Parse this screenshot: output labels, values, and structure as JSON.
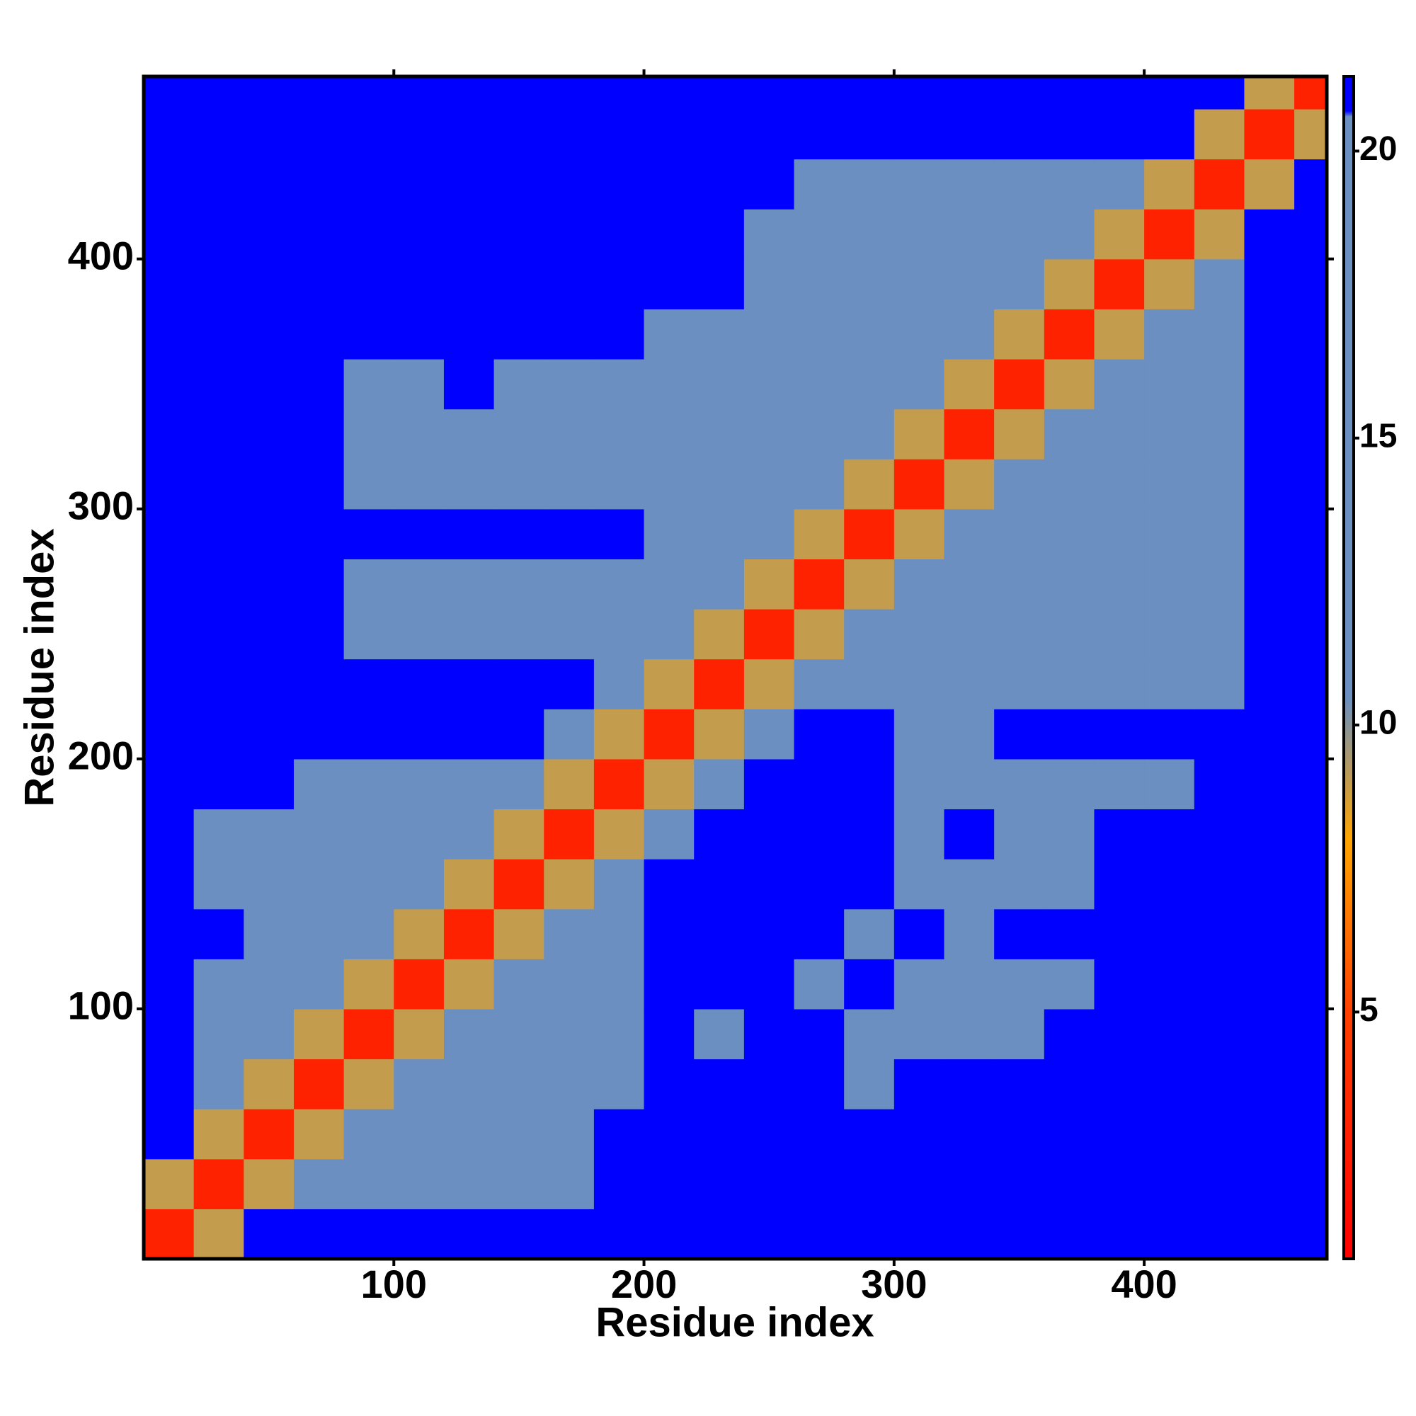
{
  "chart_data": {
    "type": "heatmap",
    "x_label": "Residue index",
    "y_label": "Residue index",
    "xlim": [
      0,
      473
    ],
    "ylim": [
      0,
      473
    ],
    "xticks": [
      100,
      200,
      300,
      400
    ],
    "yticks": [
      100,
      200,
      300,
      400
    ],
    "x_bins": [
      0,
      20,
      40,
      60,
      80,
      100,
      120,
      140,
      160,
      180,
      200,
      220,
      240,
      260,
      280,
      300,
      320,
      340,
      360,
      380,
      400,
      420,
      440,
      460,
      473
    ],
    "y_bins": [
      0,
      20,
      40,
      60,
      80,
      100,
      120,
      140,
      160,
      180,
      200,
      220,
      240,
      260,
      280,
      300,
      320,
      340,
      360,
      380,
      400,
      420,
      440,
      460,
      473
    ],
    "z": [
      [
        3,
        9,
        21,
        21,
        21,
        21,
        21,
        21,
        21,
        21,
        21,
        21,
        21,
        21,
        21,
        21,
        21,
        21,
        21,
        21,
        21,
        21,
        21,
        21
      ],
      [
        9,
        3,
        9,
        14,
        14,
        14,
        14,
        14,
        14,
        21,
        21,
        21,
        21,
        21,
        21,
        21,
        21,
        21,
        21,
        21,
        21,
        21,
        21,
        21
      ],
      [
        21,
        9,
        3,
        9,
        14,
        14,
        14,
        14,
        14,
        21,
        21,
        21,
        21,
        21,
        21,
        21,
        21,
        21,
        21,
        21,
        21,
        21,
        21,
        21
      ],
      [
        21,
        14,
        9,
        3,
        9,
        14,
        14,
        14,
        14,
        17,
        21,
        21,
        21,
        21,
        18,
        21,
        21,
        21,
        21,
        21,
        21,
        21,
        21,
        21
      ],
      [
        21,
        14,
        14,
        9,
        3,
        9,
        14,
        14,
        14,
        17,
        21,
        18,
        21,
        21,
        18,
        18,
        17,
        18,
        21,
        21,
        21,
        21,
        21,
        21
      ],
      [
        21,
        14,
        14,
        14,
        9,
        3,
        9,
        14,
        14,
        17,
        21,
        21,
        21,
        18,
        21,
        18,
        18,
        17,
        18,
        21,
        21,
        21,
        21,
        21
      ],
      [
        21,
        21,
        14,
        14,
        14,
        9,
        3,
        9,
        14,
        17,
        21,
        21,
        21,
        21,
        18,
        21,
        18,
        21,
        21,
        21,
        21,
        21,
        21,
        21
      ],
      [
        21,
        14,
        14,
        14,
        14,
        14,
        9,
        3,
        9,
        14,
        21,
        21,
        21,
        21,
        21,
        18,
        18,
        17,
        18,
        21,
        21,
        21,
        21,
        21
      ],
      [
        21,
        14,
        14,
        14,
        14,
        14,
        14,
        9,
        3,
        9,
        14,
        21,
        21,
        21,
        21,
        18,
        21,
        18,
        18,
        21,
        21,
        21,
        21,
        21
      ],
      [
        21,
        21,
        21,
        14,
        14,
        17,
        14,
        14,
        9,
        3,
        9,
        17,
        21,
        21,
        21,
        18,
        18,
        18,
        18,
        18,
        18,
        21,
        21,
        21
      ],
      [
        21,
        21,
        21,
        21,
        21,
        21,
        21,
        21,
        14,
        9,
        3,
        9,
        17,
        21,
        21,
        17,
        18,
        21,
        21,
        21,
        21,
        21,
        21,
        21
      ],
      [
        21,
        21,
        21,
        21,
        21,
        21,
        21,
        21,
        21,
        17,
        9,
        3,
        9,
        14,
        14,
        14,
        14,
        14,
        14,
        14,
        14,
        14,
        21,
        21
      ],
      [
        21,
        21,
        21,
        21,
        18,
        18,
        17,
        17,
        18,
        17,
        17,
        9,
        3,
        9,
        14,
        14,
        14,
        14,
        14,
        14,
        14,
        14,
        21,
        21
      ],
      [
        21,
        21,
        21,
        21,
        18,
        18,
        18,
        18,
        18,
        18,
        17,
        14,
        9,
        3,
        9,
        14,
        14,
        14,
        14,
        14,
        14,
        14,
        21,
        21
      ],
      [
        21,
        21,
        21,
        21,
        21,
        21,
        21,
        21,
        21,
        21,
        17,
        14,
        14,
        9,
        3,
        9,
        14,
        14,
        14,
        14,
        14,
        14,
        21,
        21
      ],
      [
        21,
        21,
        21,
        21,
        18,
        18,
        18,
        18,
        18,
        18,
        17,
        14,
        14,
        14,
        9,
        3,
        9,
        14,
        14,
        14,
        14,
        14,
        21,
        21
      ],
      [
        21,
        21,
        21,
        21,
        18,
        18,
        18,
        18,
        18,
        18,
        17,
        14,
        14,
        14,
        14,
        9,
        3,
        9,
        14,
        14,
        14,
        14,
        21,
        21
      ],
      [
        21,
        21,
        21,
        21,
        18,
        18,
        21,
        18,
        18,
        18,
        17,
        14,
        14,
        14,
        14,
        14,
        9,
        3,
        9,
        14,
        14,
        14,
        21,
        21
      ],
      [
        21,
        21,
        21,
        21,
        21,
        21,
        21,
        21,
        21,
        21,
        17,
        14,
        14,
        14,
        14,
        14,
        14,
        9,
        3,
        9,
        14,
        14,
        21,
        21
      ],
      [
        21,
        21,
        21,
        21,
        21,
        21,
        21,
        21,
        21,
        21,
        21,
        21,
        14,
        14,
        14,
        14,
        14,
        14,
        9,
        3,
        9,
        14,
        21,
        21
      ],
      [
        21,
        21,
        21,
        21,
        21,
        21,
        21,
        21,
        21,
        21,
        21,
        21,
        14,
        14,
        14,
        14,
        14,
        14,
        14,
        9,
        3,
        9,
        21,
        21
      ],
      [
        21,
        21,
        21,
        21,
        21,
        21,
        21,
        21,
        21,
        21,
        21,
        21,
        21,
        14,
        14,
        14,
        14,
        14,
        14,
        14,
        9,
        3,
        9,
        21
      ],
      [
        21,
        21,
        21,
        21,
        21,
        21,
        21,
        21,
        21,
        21,
        21,
        21,
        21,
        21,
        21,
        21,
        21,
        21,
        21,
        21,
        21,
        9,
        3,
        9
      ],
      [
        21,
        21,
        21,
        21,
        21,
        21,
        21,
        21,
        21,
        21,
        21,
        21,
        21,
        21,
        21,
        21,
        21,
        21,
        21,
        21,
        21,
        21,
        9,
        3
      ]
    ],
    "colorbar": {
      "lim": [
        0.7,
        21.3
      ],
      "ticks": [
        5,
        10,
        15,
        20
      ],
      "colorscale": [
        [
          0.7,
          "#ff0000"
        ],
        [
          5,
          "#ff4000"
        ],
        [
          8,
          "#ffa500"
        ],
        [
          10.5,
          "#6a8fc0"
        ],
        [
          20.6,
          "#6a8fc0"
        ],
        [
          20.7,
          "#0000ff"
        ],
        [
          21.3,
          "#0000ff"
        ]
      ]
    }
  }
}
